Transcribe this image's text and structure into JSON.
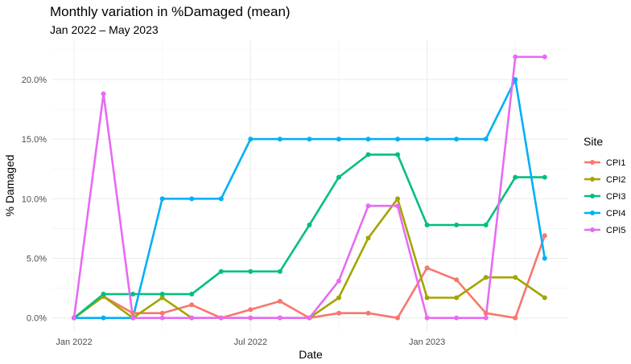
{
  "chart_data": {
    "type": "line",
    "title": "Monthly variation in %Damaged (mean)",
    "subtitle": "Jan 2022 – May 2023",
    "xlabel": "Date",
    "ylabel": "% Damaged",
    "x": [
      "2022-01",
      "2022-02",
      "2022-03",
      "2022-04",
      "2022-05",
      "2022-06",
      "2022-07",
      "2022-08",
      "2022-09",
      "2022-10",
      "2022-11",
      "2022-12",
      "2023-01",
      "2023-02",
      "2023-03",
      "2023-04",
      "2023-05"
    ],
    "x_ticks": [
      {
        "date": "2022-01",
        "label": "Jan 2022"
      },
      {
        "date": "2022-07",
        "label": "Jul 2022"
      },
      {
        "date": "2023-01",
        "label": "Jan 2023"
      }
    ],
    "y_ticks": [
      {
        "value": 0,
        "label": "0.0%"
      },
      {
        "value": 5,
        "label": "5.0%"
      },
      {
        "value": 10,
        "label": "10.0%"
      },
      {
        "value": 15,
        "label": "15.0%"
      },
      {
        "value": 20,
        "label": "20.0%"
      }
    ],
    "ylim": [
      -1.1,
      23.3
    ],
    "grid": true,
    "legend": {
      "title": "Site",
      "position": "right"
    },
    "series": [
      {
        "name": "CPI1",
        "color": "#F8766D",
        "values": [
          0.0,
          1.8,
          0.4,
          0.4,
          1.1,
          0.0,
          0.7,
          1.4,
          0.0,
          0.4,
          0.4,
          0.0,
          4.2,
          3.2,
          0.4,
          0.0,
          6.9
        ]
      },
      {
        "name": "CPI2",
        "color": "#A3A500",
        "values": [
          0.0,
          1.8,
          0.0,
          1.7,
          0.0,
          0.0,
          0.0,
          0.0,
          0.0,
          1.7,
          6.7,
          10.0,
          1.7,
          1.7,
          3.4,
          3.4,
          1.7
        ]
      },
      {
        "name": "CPI3",
        "color": "#00BF7D",
        "values": [
          0.0,
          2.0,
          2.0,
          2.0,
          2.0,
          3.9,
          3.9,
          3.9,
          7.8,
          11.8,
          13.7,
          13.7,
          7.8,
          7.8,
          7.8,
          11.8,
          11.8
        ]
      },
      {
        "name": "CPI4",
        "color": "#00B0F6",
        "values": [
          0.0,
          0.0,
          0.0,
          10.0,
          10.0,
          10.0,
          15.0,
          15.0,
          15.0,
          15.0,
          15.0,
          15.0,
          15.0,
          15.0,
          15.0,
          20.0,
          5.0
        ]
      },
      {
        "name": "CPI5",
        "color": "#E76BF3",
        "values": [
          0.0,
          18.8,
          0.0,
          0.0,
          0.0,
          0.0,
          0.0,
          0.0,
          0.0,
          3.1,
          9.4,
          9.4,
          0.0,
          0.0,
          0.0,
          21.9,
          21.9
        ]
      }
    ]
  }
}
